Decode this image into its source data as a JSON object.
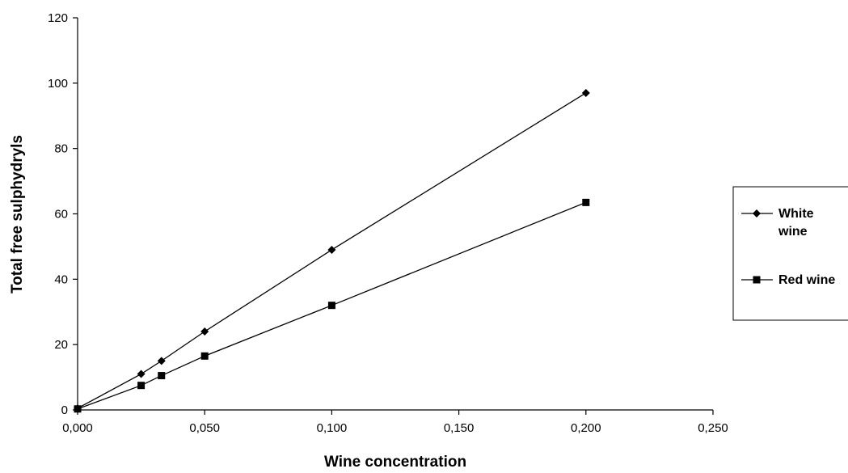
{
  "chart_data": {
    "type": "line",
    "xlabel": "Wine concentration",
    "ylabel": "Total free sulphydryls",
    "xlim": [
      0,
      0.25
    ],
    "ylim": [
      0,
      120
    ],
    "xticks": [
      "0,000",
      "0,050",
      "0,100",
      "0,150",
      "0,200",
      "0,250"
    ],
    "yticks": [
      "0",
      "20",
      "40",
      "60",
      "80",
      "100",
      "120"
    ],
    "grid": false,
    "legend_position": "right",
    "series": [
      {
        "name_lines": [
          "White",
          "wine"
        ],
        "marker": "diamond",
        "color": "#000000",
        "x": [
          0,
          0.025,
          0.033,
          0.05,
          0.1,
          0.2
        ],
        "y": [
          0.5,
          11,
          15,
          24,
          49,
          97
        ]
      },
      {
        "name_lines": [
          "Red wine"
        ],
        "marker": "square",
        "color": "#000000",
        "x": [
          0,
          0.025,
          0.033,
          0.05,
          0.1,
          0.2
        ],
        "y": [
          0.3,
          7.5,
          10.5,
          16.5,
          32,
          63.5
        ]
      }
    ]
  }
}
